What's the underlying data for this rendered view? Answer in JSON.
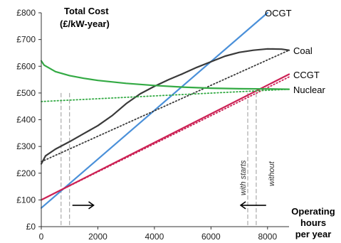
{
  "chart_data": {
    "type": "line",
    "title": "Total Cost",
    "subtitle": "(£/kW-year)",
    "xlabel": [
      "Operating",
      "hours",
      "per year"
    ],
    "ylabel": "",
    "xlim": [
      0,
      8760
    ],
    "ylim": [
      0,
      800
    ],
    "xticks": [
      0,
      2000,
      4000,
      6000,
      8000
    ],
    "xtick_labels": [
      "0",
      "2000",
      "4000",
      "6000",
      "8000"
    ],
    "yticks": [
      0,
      100,
      200,
      300,
      400,
      500,
      600,
      700,
      800
    ],
    "ytick_labels": [
      "£0",
      "£100",
      "£200",
      "£300",
      "£400",
      "£500",
      "£600",
      "£700",
      "£800"
    ],
    "grid": false,
    "series": [
      {
        "name": "OCGT",
        "color": "#4a90d9",
        "style": "solid",
        "x": [
          0,
          8000
        ],
        "y": [
          70,
          800
        ]
      },
      {
        "name": "Coal",
        "color": "#3a3a3a",
        "style": "solid",
        "x": [
          0,
          150,
          500,
          1000,
          1500,
          2000,
          2500,
          3000,
          3500,
          4000,
          4500,
          5000,
          5500,
          6000,
          6500,
          7000,
          7500,
          8000,
          8500,
          8760
        ],
        "y": [
          235,
          265,
          290,
          318,
          348,
          378,
          415,
          460,
          497,
          525,
          550,
          572,
          596,
          617,
          638,
          652,
          660,
          665,
          664,
          660
        ]
      },
      {
        "name": "",
        "color": "#3a3a3a",
        "style": "dotted",
        "x": [
          0,
          8760
        ],
        "y": [
          243,
          660
        ]
      },
      {
        "name": "CCGT",
        "color": "#cc2255",
        "style": "solid",
        "x": [
          0,
          8760
        ],
        "y": [
          100,
          570
        ]
      },
      {
        "name": "",
        "color": "#cc2255",
        "style": "dotted",
        "x": [
          0,
          8760
        ],
        "y": [
          100,
          560
        ]
      },
      {
        "name": "Nuclear",
        "color": "#33aa44",
        "style": "solid",
        "x": [
          0,
          100,
          500,
          1000,
          1500,
          2000,
          3000,
          4000,
          5000,
          6000,
          7000,
          8000,
          8760
        ],
        "y": [
          620,
          604,
          580,
          565,
          555,
          547,
          536,
          528,
          522,
          518,
          516,
          515,
          514
        ]
      },
      {
        "name": "",
        "color": "#33aa44",
        "style": "dotted",
        "x": [
          0,
          8760
        ],
        "y": [
          468,
          514
        ]
      }
    ],
    "annotations": [
      {
        "text": "with starts",
        "x": 7300
      },
      {
        "text": "without",
        "x": 7600
      }
    ],
    "ref_lines_x": [
      700,
      1000,
      7300,
      7600
    ],
    "arrows": [
      {
        "from": 1100,
        "to": 1850,
        "y": 80
      },
      {
        "from": 7950,
        "to": 7050,
        "y": 80
      }
    ]
  }
}
